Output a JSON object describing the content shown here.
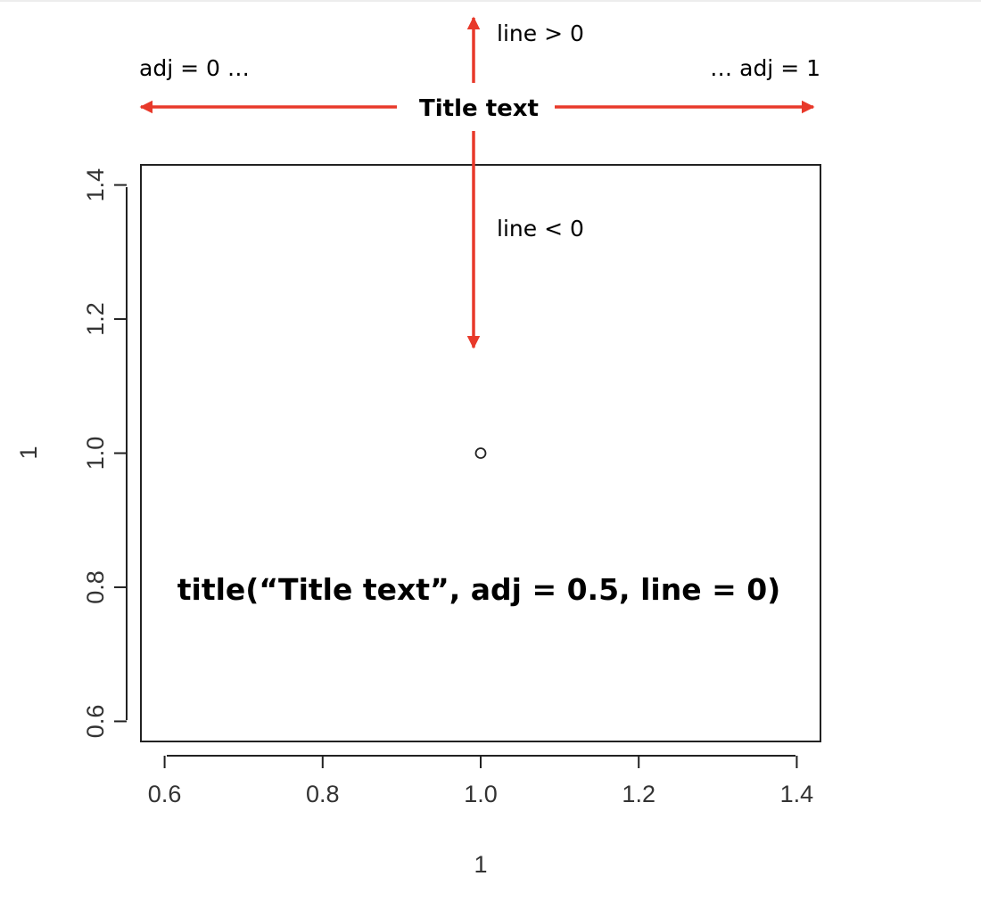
{
  "chart_data": {
    "type": "scatter",
    "title": "Title text",
    "xlabel": "1",
    "ylabel": "1",
    "xlim": [
      0.57,
      1.43
    ],
    "ylim": [
      0.57,
      1.43
    ],
    "x_ticks": [
      0.6,
      0.8,
      1.0,
      1.2,
      1.4
    ],
    "y_ticks": [
      0.6,
      0.8,
      1.0,
      1.2,
      1.4
    ],
    "x_tick_labels": [
      "0.6",
      "0.8",
      "1.0",
      "1.2",
      "1.4"
    ],
    "y_tick_labels": [
      "0.6",
      "0.8",
      "1.0",
      "1.2",
      "1.4"
    ],
    "points": [
      {
        "x": 1.0,
        "y": 1.0
      }
    ],
    "grid": false,
    "annotations": {
      "line_up": "line > 0",
      "line_down": "line < 0",
      "adj_left": "adj = 0 …",
      "adj_right": "… adj = 1",
      "code": "title(“Title text”, adj = 0.5, line = 0)"
    },
    "arrow_color": "#e8392a"
  }
}
